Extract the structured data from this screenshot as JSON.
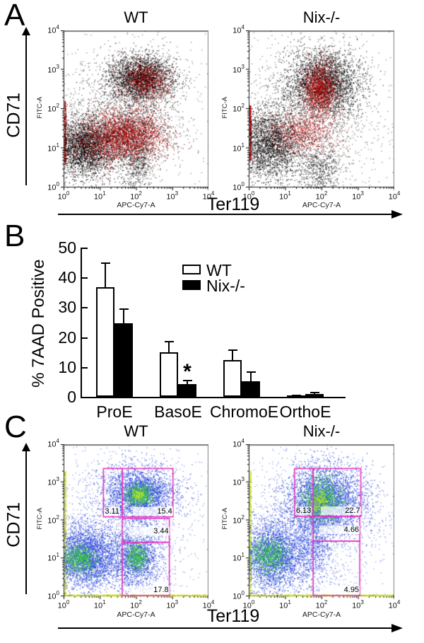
{
  "panels": {
    "a": {
      "letter": "A",
      "y_label": "CD71",
      "x_label": "Ter119"
    },
    "b": {
      "letter": "B"
    },
    "c": {
      "letter": "C",
      "y_label": "CD71",
      "x_label": "Ter119"
    }
  },
  "colors": {
    "gate": "#e636c3",
    "black": "#000000",
    "red": "#b90000",
    "blue": "#2a46dd",
    "green": "#37c83e",
    "bright": "#b4e431",
    "edge": "#c9da20",
    "frame_gray": "#808080",
    "bar_white_fill": "#ffffff",
    "bar_black_fill": "#000000"
  },
  "chart_data": [
    {
      "id": "flow-a-wt",
      "type": "scatter",
      "panel": "A",
      "title": "WT",
      "xlabel": "APC-Cy7-A",
      "ylabel": "FITC-A",
      "xlim": [
        1,
        10000
      ],
      "ylim": [
        1,
        10000
      ],
      "scale": "log-log",
      "tick_base": "10",
      "tick_exponents": [
        0,
        1,
        2,
        3,
        4
      ],
      "clusters": [
        {
          "cx": 0.55,
          "cy": 1.05,
          "sx": 0.42,
          "sy": 0.38,
          "n": 2600,
          "c": "black",
          "a": 0.7
        },
        {
          "cx": 1.7,
          "cy": 1.35,
          "sx": 0.6,
          "sy": 0.4,
          "n": 1700,
          "c": "black",
          "a": 0.6
        },
        {
          "cx": 2.15,
          "cy": 2.78,
          "sx": 0.45,
          "sy": 0.3,
          "n": 2600,
          "c": "black",
          "a": 0.7
        },
        {
          "cx": 1.5,
          "cy": 1.9,
          "sx": 1.1,
          "sy": 1.0,
          "n": 1500,
          "c": "black",
          "a": 0.45
        },
        {
          "cx": 2.0,
          "cy": 0.55,
          "sx": 0.22,
          "sy": 0.42,
          "n": 500,
          "c": "black",
          "a": 0.6
        },
        {
          "cx": 1.75,
          "cy": 1.35,
          "sx": 0.55,
          "sy": 0.33,
          "n": 2000,
          "c": "red",
          "a": 0.65
        },
        {
          "cx": 0.9,
          "cy": 1.15,
          "sx": 0.45,
          "sy": 0.3,
          "n": 600,
          "c": "red",
          "a": 0.5
        },
        {
          "cx": 2.25,
          "cy": 2.72,
          "sx": 0.33,
          "sy": 0.26,
          "n": 800,
          "c": "red",
          "a": 0.6
        }
      ],
      "edge_strips": [
        {
          "side": "left",
          "from": 0.6,
          "to": 2.2,
          "c": "red",
          "n": 260
        }
      ]
    },
    {
      "id": "flow-a-nix",
      "type": "scatter",
      "panel": "A",
      "title": "Nix-/-",
      "xlabel": "APC-Cy7-A",
      "ylabel": "FITC-A",
      "xlim": [
        1,
        10000
      ],
      "ylim": [
        1,
        10000
      ],
      "scale": "log-log",
      "tick_base": "10",
      "tick_exponents": [
        0,
        1,
        2,
        3,
        4
      ],
      "clusters": [
        {
          "cx": 0.55,
          "cy": 1.1,
          "sx": 0.45,
          "sy": 0.45,
          "n": 2400,
          "c": "black",
          "a": 0.7
        },
        {
          "cx": 2.05,
          "cy": 2.65,
          "sx": 0.5,
          "sy": 0.42,
          "n": 2800,
          "c": "black",
          "a": 0.7
        },
        {
          "cx": 1.6,
          "cy": 1.8,
          "sx": 1.05,
          "sy": 1.05,
          "n": 1900,
          "c": "black",
          "a": 0.45
        },
        {
          "cx": 1.95,
          "cy": 0.5,
          "sx": 0.28,
          "sy": 0.4,
          "n": 550,
          "c": "black",
          "a": 0.6
        },
        {
          "cx": 1.95,
          "cy": 2.5,
          "sx": 0.23,
          "sy": 0.34,
          "n": 1400,
          "c": "red",
          "a": 0.6
        },
        {
          "cx": 1.45,
          "cy": 1.4,
          "sx": 0.5,
          "sy": 0.28,
          "n": 900,
          "c": "red",
          "a": 0.55
        }
      ],
      "edge_strips": [
        {
          "side": "left",
          "from": 0.7,
          "to": 2.1,
          "c": "red",
          "n": 260
        }
      ]
    },
    {
      "id": "bar-7aad",
      "type": "bar",
      "panel": "B",
      "title": "",
      "ylabel": "% 7AAD Positive",
      "ylim": [
        0,
        50
      ],
      "yticks": [
        0,
        10,
        20,
        30,
        40,
        50
      ],
      "categories": [
        "ProE",
        "BasoE",
        "ChromoE",
        "OrthoE"
      ],
      "series": [
        {
          "name": "WT",
          "fill": "white",
          "values": [
            36.8,
            15.0,
            12.3,
            0.5
          ],
          "errors": [
            8.2,
            3.8,
            3.6,
            0.3
          ]
        },
        {
          "name": "Nix-/-",
          "fill": "black",
          "values": [
            24.6,
            4.2,
            5.1,
            1.0
          ],
          "errors": [
            5.1,
            1.5,
            3.4,
            0.6
          ]
        }
      ],
      "legend": [
        "WT",
        "Nix-/-"
      ],
      "legend_position": "upper-middle",
      "grid": false,
      "annotations": [
        {
          "text": "*",
          "category_index": 1,
          "series_index": 1,
          "meaning": "significant"
        }
      ]
    },
    {
      "id": "flow-c-wt",
      "type": "scatter",
      "panel": "C",
      "title": "WT",
      "xlabel": "APC-Cy7-A",
      "ylabel": "FITC-A",
      "xlim": [
        1,
        10000
      ],
      "ylim": [
        1,
        10000
      ],
      "scale": "log-log",
      "tick_base": "10",
      "tick_exponents": [
        0,
        1,
        2,
        3,
        4
      ],
      "clusters": [
        {
          "cx": 0.6,
          "cy": 1.05,
          "sx": 0.5,
          "sy": 0.42,
          "n": 3000,
          "c": "blue",
          "a": 0.8
        },
        {
          "cx": 0.45,
          "cy": 1.0,
          "sx": 0.25,
          "sy": 0.2,
          "n": 650,
          "c": "green",
          "a": 0.8
        },
        {
          "cx": 2.1,
          "cy": 2.7,
          "sx": 0.5,
          "sy": 0.35,
          "n": 2400,
          "c": "blue",
          "a": 0.8
        },
        {
          "cx": 2.07,
          "cy": 2.68,
          "sx": 0.2,
          "sy": 0.15,
          "n": 600,
          "c": "green",
          "a": 0.85
        },
        {
          "cx": 2.07,
          "cy": 2.68,
          "sx": 0.08,
          "sy": 0.06,
          "n": 140,
          "c": "bright",
          "a": 0.9
        },
        {
          "cx": 2.0,
          "cy": 1.0,
          "sx": 0.35,
          "sy": 0.42,
          "n": 1500,
          "c": "blue",
          "a": 0.8
        },
        {
          "cx": 2.0,
          "cy": 1.05,
          "sx": 0.15,
          "sy": 0.17,
          "n": 420,
          "c": "green",
          "a": 0.85
        },
        {
          "cx": 1.6,
          "cy": 1.9,
          "sx": 1.15,
          "sy": 1.05,
          "n": 1700,
          "c": "blue",
          "a": 0.5
        }
      ],
      "edge_strips": [
        {
          "side": "left",
          "from": 0.03,
          "to": 3.3,
          "c": "edge",
          "n": 420
        },
        {
          "side": "bottom",
          "from": 0.03,
          "to": 3.95,
          "c": "edge",
          "n": 650
        }
      ],
      "gates": [
        {
          "x": [
            1.1,
            1.62
          ],
          "y": [
            2.09,
            3.36
          ],
          "label": "3.11",
          "label_pos": "bl"
        },
        {
          "x": [
            1.62,
            3.02
          ],
          "y": [
            2.09,
            3.36
          ],
          "label": "15.4",
          "label_pos": "br"
        },
        {
          "x": [
            1.62,
            2.92
          ],
          "y": [
            1.42,
            2.05
          ],
          "label": "3.44",
          "label_pos": "mr"
        },
        {
          "x": [
            1.62,
            2.92
          ],
          "y": [
            0.02,
            1.42
          ],
          "label": "17.8",
          "label_pos": "br"
        }
      ]
    },
    {
      "id": "flow-c-nix",
      "type": "scatter",
      "panel": "C",
      "title": "Nix-/-",
      "xlabel": "APC-Cy7-A",
      "ylabel": "FITC-A",
      "xlim": [
        1,
        10000
      ],
      "ylim": [
        1,
        10000
      ],
      "scale": "log-log",
      "tick_base": "10",
      "tick_exponents": [
        0,
        1,
        2,
        3,
        4
      ],
      "clusters": [
        {
          "cx": 0.65,
          "cy": 1.1,
          "sx": 0.5,
          "sy": 0.46,
          "n": 2800,
          "c": "blue",
          "a": 0.8
        },
        {
          "cx": 0.55,
          "cy": 1.1,
          "sx": 0.27,
          "sy": 0.24,
          "n": 700,
          "c": "green",
          "a": 0.8
        },
        {
          "cx": 2.1,
          "cy": 2.55,
          "sx": 0.55,
          "sy": 0.45,
          "n": 3000,
          "c": "blue",
          "a": 0.8
        },
        {
          "cx": 1.98,
          "cy": 2.52,
          "sx": 0.28,
          "sy": 0.3,
          "n": 1000,
          "c": "green",
          "a": 0.85
        },
        {
          "cx": 1.95,
          "cy": 2.5,
          "sx": 0.12,
          "sy": 0.13,
          "n": 220,
          "c": "bright",
          "a": 0.9
        },
        {
          "cx": 1.8,
          "cy": 1.5,
          "sx": 0.3,
          "sy": 0.65,
          "n": 900,
          "c": "blue",
          "a": 0.7
        },
        {
          "cx": 1.7,
          "cy": 1.9,
          "sx": 1.15,
          "sy": 1.05,
          "n": 1700,
          "c": "blue",
          "a": 0.5
        }
      ],
      "edge_strips": [
        {
          "side": "left",
          "from": 0.03,
          "to": 3.3,
          "c": "edge",
          "n": 420
        },
        {
          "side": "bottom",
          "from": 0.03,
          "to": 3.95,
          "c": "edge",
          "n": 650
        }
      ],
      "gates": [
        {
          "x": [
            1.26,
            1.77
          ],
          "y": [
            2.1,
            3.36
          ],
          "label": "6.13",
          "label_pos": "bl"
        },
        {
          "x": [
            1.77,
            3.08
          ],
          "y": [
            2.1,
            3.36
          ],
          "label": "22.7",
          "label_pos": "br"
        },
        {
          "x": [
            1.77,
            3.05
          ],
          "y": [
            1.45,
            2.1
          ],
          "label": "4.66",
          "label_pos": "mr"
        },
        {
          "x": [
            1.77,
            3.05
          ],
          "y": [
            0.02,
            1.45
          ],
          "label": "4.95",
          "label_pos": "br"
        }
      ]
    }
  ]
}
